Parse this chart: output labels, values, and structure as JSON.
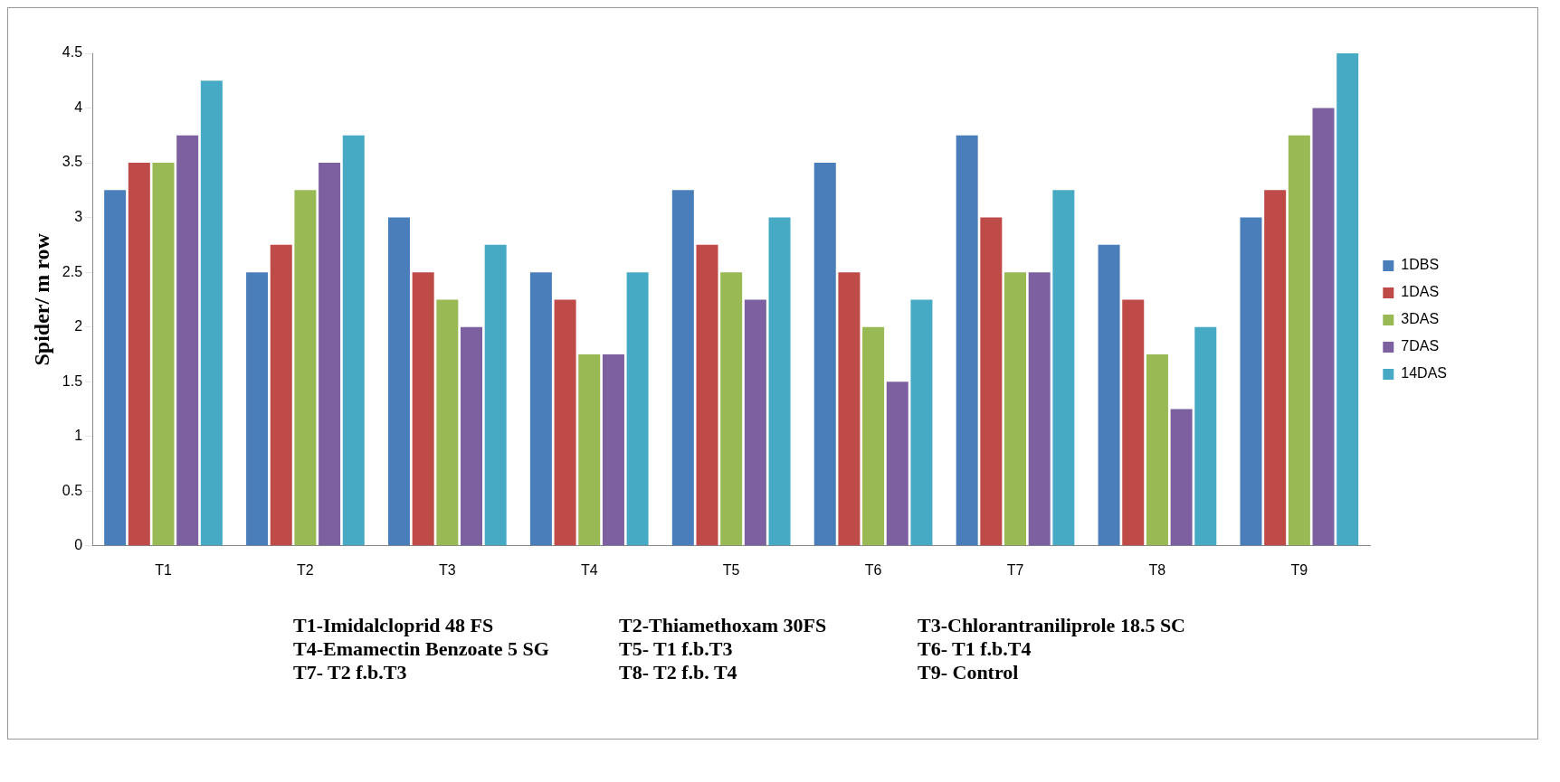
{
  "chart_data": {
    "type": "bar",
    "ylabel": "Spider/ m row",
    "categories": [
      "T1",
      "T2",
      "T3",
      "T4",
      "T5",
      "T6",
      "T7",
      "T8",
      "T9"
    ],
    "series": [
      {
        "name": "1DBS",
        "color": "#4a7ebb",
        "values": [
          3.25,
          2.5,
          3,
          2.5,
          3.25,
          3.5,
          3.75,
          2.75,
          3
        ]
      },
      {
        "name": "1DAS",
        "color": "#be4b48",
        "values": [
          3.5,
          2.75,
          2.5,
          2.25,
          2.75,
          2.5,
          3,
          2.25,
          3.25
        ]
      },
      {
        "name": "3DAS",
        "color": "#98b954",
        "values": [
          3.5,
          3.25,
          2.25,
          1.75,
          2.5,
          2,
          2.5,
          1.75,
          3.75
        ]
      },
      {
        "name": "7DAS",
        "color": "#7d60a0",
        "values": [
          3.75,
          3.5,
          2,
          1.75,
          2.25,
          1.5,
          2.5,
          1.25,
          4
        ]
      },
      {
        "name": "14DAS",
        "color": "#46aac5",
        "values": [
          4.25,
          3.75,
          2.75,
          2.5,
          3,
          2.25,
          3.25,
          2,
          4.5
        ]
      }
    ],
    "ylim": [
      0,
      4.5
    ],
    "yticks": [
      0,
      0.5,
      1,
      1.5,
      2,
      2.5,
      3,
      3.5,
      4,
      4.5
    ],
    "grid": false,
    "legend": "right",
    "annotations": [
      "T1-Imidalcloprid 48 FS",
      "T2-Thiamethoxam 30FS",
      "T3-Chlorantraniliprole 18.5 SC",
      "T4-Emamectin Benzoate 5 SG",
      "T5- T1 f.b.T3",
      "T6- T1 f.b.T4",
      "T7- T2 f.b.T3",
      "T8- T2 f.b. T4",
      "T9- Control"
    ]
  }
}
